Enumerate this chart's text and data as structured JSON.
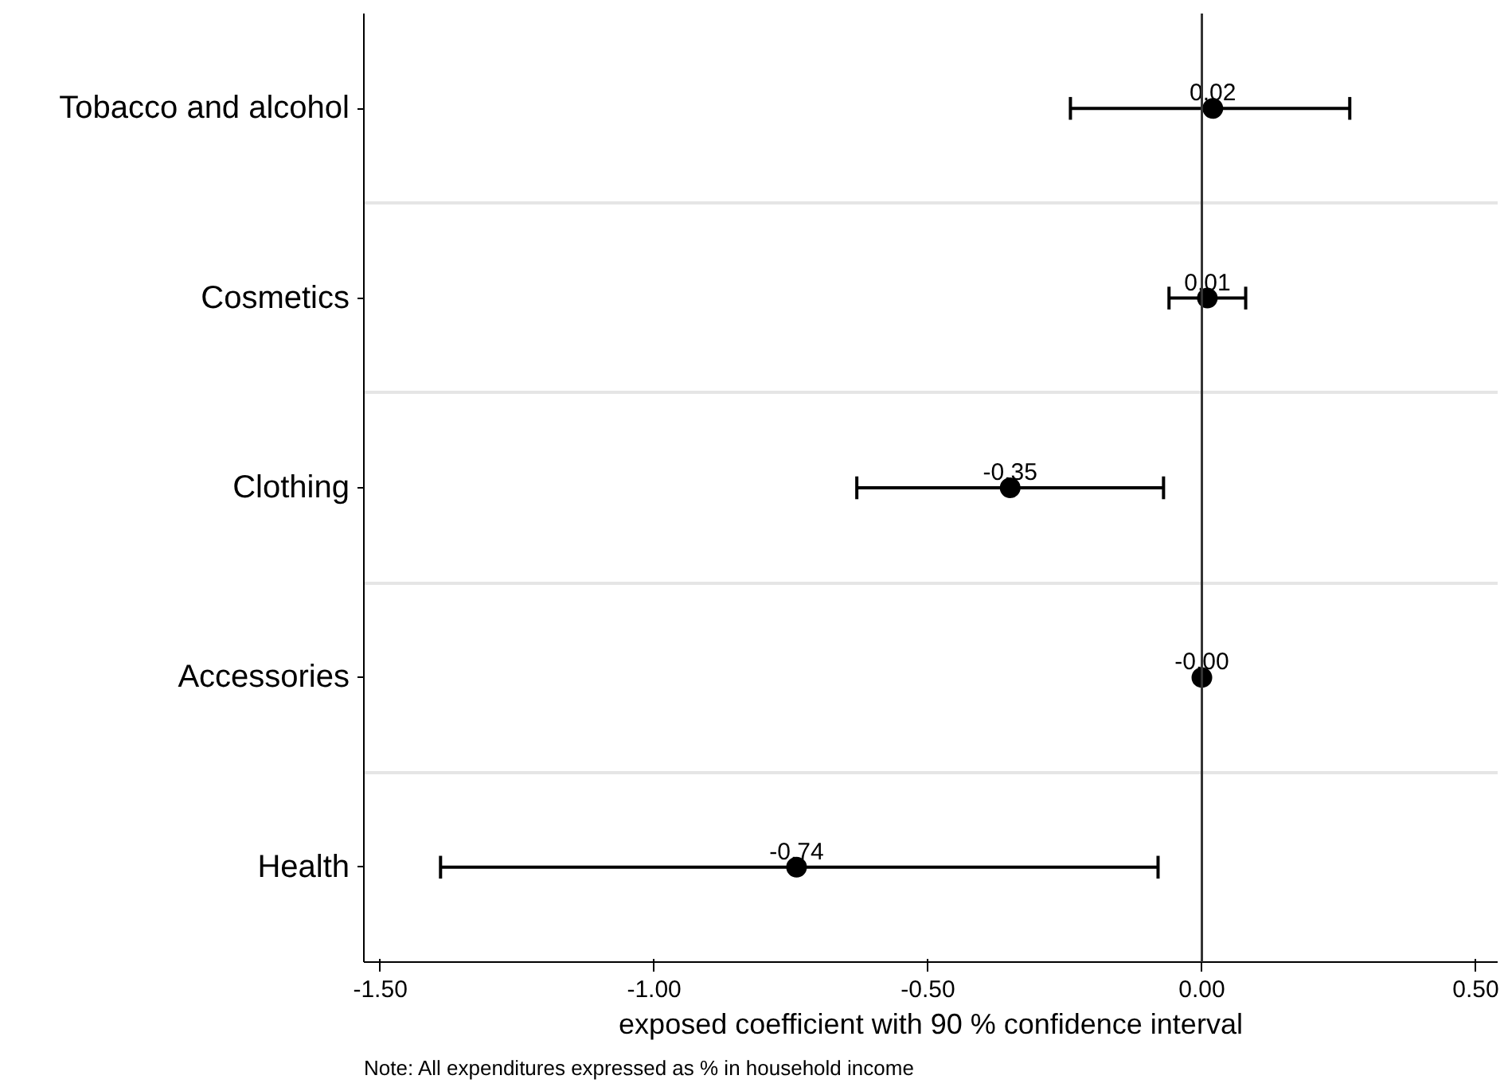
{
  "chart_data": {
    "type": "scatter",
    "orientation": "horizontal",
    "categories": [
      "Tobacco and alcohol",
      "Cosmetics",
      "Clothing",
      "Accessories",
      "Health"
    ],
    "values": [
      0.02,
      0.01,
      -0.35,
      0,
      -0.74
    ],
    "value_labels": [
      "0.02",
      "0.01",
      "-0.35",
      "-0.00",
      "-0.74"
    ],
    "errors": [
      [
        -0.24,
        0.27
      ],
      [
        -0.06,
        0.08
      ],
      [
        -0.63,
        -0.07
      ],
      null,
      [
        -1.39,
        -0.08
      ]
    ],
    "color": "#000000",
    "marker": "circle",
    "xlim": [
      -1.53,
      0.54
    ],
    "xticks": [
      {
        "value": -1.5,
        "label": "-1.50"
      },
      {
        "value": -1.0,
        "label": "-1.00"
      },
      {
        "value": -0.5,
        "label": "-0.50"
      },
      {
        "value": 0,
        "label": "0.00"
      },
      {
        "value": 0.5,
        "label": "0.50"
      }
    ],
    "xlabel": "exposed coefficient with 90 % confidence interval",
    "ref_lines": [
      {
        "axis": "x",
        "value": 0,
        "color": "#333333"
      }
    ],
    "grid": "y",
    "annotations": [
      "Note: All expenditures expressed as % in household income"
    ]
  }
}
